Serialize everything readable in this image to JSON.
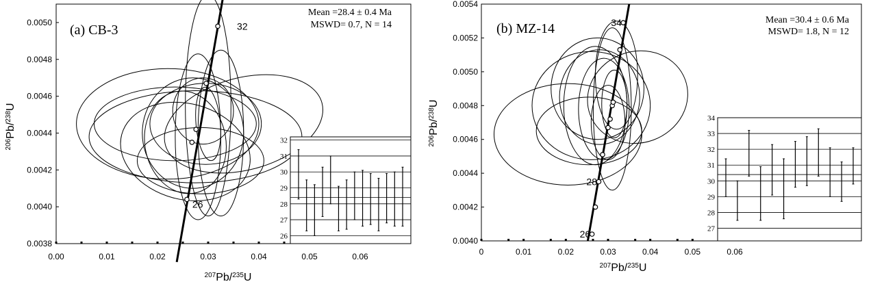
{
  "chart_data": [
    {
      "type": "scatter",
      "panel_label": "(a) CB-3",
      "stats_line1": "Mean =28.4 ± 0.4 Ma",
      "stats_line2": "MSWD= 0.7, N = 14",
      "xlabel_parts": {
        "sup1": "207",
        "base1": "Pb/",
        "sup2": "235",
        "base2": "U"
      },
      "ylabel_parts": {
        "sup1": "206",
        "base1": "Pb/",
        "sup2": "238",
        "base2": "U"
      },
      "xlim": [
        0.0,
        0.07
      ],
      "ylim": [
        0.0038,
        0.0051
      ],
      "x_tick_labels": [
        "0.00",
        "0.01",
        "0.02",
        "0.03",
        "0.04",
        "0.05",
        "0.06"
      ],
      "x_tick_values": [
        0.0,
        0.01,
        0.02,
        0.03,
        0.04,
        0.05,
        0.06
      ],
      "y_tick_labels": [
        "0.0038",
        "0.0040",
        "0.0042",
        "0.0044",
        "0.0046",
        "0.0048",
        "0.0050"
      ],
      "y_tick_values": [
        0.0038,
        0.004,
        0.0042,
        0.0044,
        0.0046,
        0.0048,
        0.005
      ],
      "concordia": [
        [
          0.0238,
          0.0037
        ],
        [
          0.0346,
          0.0054
        ]
      ],
      "concordia_points": [
        {
          "age": "26",
          "x": 0.0258,
          "y": 0.00404
        },
        {
          "age": "",
          "x": 0.0268,
          "y": 0.00435
        },
        {
          "age": "",
          "x": 0.0276,
          "y": 0.00442
        },
        {
          "age": "",
          "x": 0.0296,
          "y": 0.00467
        },
        {
          "age": "32",
          "x": 0.0319,
          "y": 0.00498
        }
      ],
      "ellipses": [
        {
          "cx": 0.0275,
          "cy": 0.00438,
          "rx": 0.021,
          "ry": 0.00025,
          "angle": 0
        },
        {
          "cx": 0.022,
          "cy": 0.00445,
          "rx": 0.018,
          "ry": 0.0003,
          "angle": 0
        },
        {
          "cx": 0.0255,
          "cy": 0.0043,
          "rx": 0.013,
          "ry": 0.00026,
          "angle": -15
        },
        {
          "cx": 0.0235,
          "cy": 0.00445,
          "rx": 0.016,
          "ry": 0.0002,
          "angle": 0
        },
        {
          "cx": 0.037,
          "cy": 0.00445,
          "rx": 0.016,
          "ry": 0.00025,
          "angle": 15
        },
        {
          "cx": 0.027,
          "cy": 0.0044,
          "rx": 0.01,
          "ry": 0.0003,
          "angle": 0
        },
        {
          "cx": 0.0295,
          "cy": 0.00445,
          "rx": 0.011,
          "ry": 0.00022,
          "angle": 0
        },
        {
          "cx": 0.03,
          "cy": 0.00455,
          "rx": 0.0045,
          "ry": 0.0006,
          "angle": 0
        },
        {
          "cx": 0.028,
          "cy": 0.00438,
          "rx": 0.0045,
          "ry": 0.00045,
          "angle": 0
        },
        {
          "cx": 0.0325,
          "cy": 0.0044,
          "rx": 0.0045,
          "ry": 0.00045,
          "angle": 0
        },
        {
          "cx": 0.0255,
          "cy": 0.00435,
          "rx": 0.008,
          "ry": 0.00028,
          "angle": 10
        },
        {
          "cx": 0.0285,
          "cy": 0.00425,
          "rx": 0.0125,
          "ry": 0.00018,
          "angle": 0
        },
        {
          "cx": 0.029,
          "cy": 0.00452,
          "rx": 0.006,
          "ry": 0.00018,
          "angle": 0
        },
        {
          "cx": 0.03,
          "cy": 0.00445,
          "rx": 0.0024,
          "ry": 0.0002,
          "angle": 5
        }
      ],
      "inset": {
        "ylim": [
          25.5,
          32.2
        ],
        "y_tick_labels": [
          "26",
          "27",
          "28",
          "29",
          "30",
          "31",
          "32"
        ],
        "y_tick_values": [
          26,
          27,
          28,
          29,
          30,
          31,
          32
        ],
        "mean": 28.4,
        "bars": [
          {
            "low": 28.3,
            "high": 31.4
          },
          {
            "low": 26.3,
            "high": 29.5
          },
          {
            "low": 26.0,
            "high": 29.2
          },
          {
            "low": 27.2,
            "high": 30.3
          },
          {
            "low": 28.0,
            "high": 31.0
          },
          {
            "low": 26.3,
            "high": 29.1
          },
          {
            "low": 26.4,
            "high": 29.5
          },
          {
            "low": 27.0,
            "high": 30.0
          },
          {
            "low": 26.6,
            "high": 30.1
          },
          {
            "low": 26.7,
            "high": 29.9
          },
          {
            "low": 26.3,
            "high": 29.6
          },
          {
            "low": 26.8,
            "high": 29.9
          },
          {
            "low": 26.6,
            "high": 30.0
          },
          {
            "low": 26.6,
            "high": 30.3
          }
        ]
      }
    },
    {
      "type": "scatter",
      "panel_label": "(b) MZ-14",
      "stats_line1": "Mean =30.4 ± 0.6 Ma",
      "stats_line2": "MSWD= 1.8, N = 12",
      "xlabel_parts": {
        "sup1": "207",
        "base1": "Pb/",
        "sup2": "235",
        "base2": "U"
      },
      "ylabel_parts": {
        "sup1": "206",
        "base1": "Pb/",
        "sup2": "238",
        "base2": "U"
      },
      "xlim": [
        0.0,
        0.09
      ],
      "ylim": [
        0.004,
        0.0054
      ],
      "x_tick_labels": [
        "0",
        "0.01",
        "0.02",
        "0.03",
        "0.04",
        "0.05",
        "0.06"
      ],
      "x_tick_values": [
        0.0,
        0.01,
        0.02,
        0.03,
        0.04,
        0.05,
        0.06
      ],
      "y_tick_labels": [
        "0.0040",
        "0.0042",
        "0.0044",
        "0.0046",
        "0.0048",
        "0.0050",
        "0.0052",
        "0.0054"
      ],
      "y_tick_values": [
        0.004,
        0.0042,
        0.0044,
        0.0046,
        0.0048,
        0.005,
        0.0052,
        0.0054
      ],
      "concordia": [
        [
          0.0252,
          0.004
        ],
        [
          0.035,
          0.0054
        ]
      ],
      "concordia_points": [
        {
          "age": "26",
          "x": 0.0262,
          "y": 0.00404
        },
        {
          "age": "",
          "x": 0.027,
          "y": 0.0042
        },
        {
          "age": "28",
          "x": 0.0278,
          "y": 0.00435
        },
        {
          "age": "",
          "x": 0.0287,
          "y": 0.00451
        },
        {
          "age": "",
          "x": 0.03,
          "y": 0.00467
        },
        {
          "age": "",
          "x": 0.0305,
          "y": 0.00472
        },
        {
          "age": "",
          "x": 0.031,
          "y": 0.0048
        },
        {
          "age": "",
          "x": 0.0312,
          "y": 0.00482
        },
        {
          "age": "",
          "x": 0.0328,
          "y": 0.00513
        },
        {
          "age": "34",
          "x": 0.0336,
          "y": 0.00529
        }
      ],
      "ellipses": [
        {
          "cx": 0.0205,
          "cy": 0.00463,
          "rx": 0.0175,
          "ry": 0.0003,
          "angle": 0
        },
        {
          "cx": 0.0255,
          "cy": 0.00465,
          "rx": 0.0125,
          "ry": 0.0002,
          "angle": 0
        },
        {
          "cx": 0.037,
          "cy": 0.00485,
          "rx": 0.012,
          "ry": 0.00027,
          "angle": 20
        },
        {
          "cx": 0.026,
          "cy": 0.0048,
          "rx": 0.014,
          "ry": 0.00032,
          "angle": 0
        },
        {
          "cx": 0.0275,
          "cy": 0.0049,
          "rx": 0.011,
          "ry": 0.0003,
          "angle": 0
        },
        {
          "cx": 0.028,
          "cy": 0.00485,
          "rx": 0.0095,
          "ry": 0.00028,
          "angle": 0
        },
        {
          "cx": 0.027,
          "cy": 0.0048,
          "rx": 0.0075,
          "ry": 0.00035,
          "angle": 0
        },
        {
          "cx": 0.029,
          "cy": 0.00478,
          "rx": 0.006,
          "ry": 0.0003,
          "angle": 0
        },
        {
          "cx": 0.031,
          "cy": 0.00478,
          "rx": 0.0045,
          "ry": 0.00048,
          "angle": 0
        },
        {
          "cx": 0.032,
          "cy": 0.00498,
          "rx": 0.005,
          "ry": 0.00032,
          "angle": 0
        },
        {
          "cx": 0.03,
          "cy": 0.0047,
          "rx": 0.004,
          "ry": 0.00022,
          "angle": 0
        },
        {
          "cx": 0.0315,
          "cy": 0.00481,
          "rx": 0.003,
          "ry": 0.0002,
          "angle": 0
        }
      ],
      "inset": {
        "ylim": [
          26.2,
          34.0
        ],
        "y_tick_labels": [
          "27",
          "28",
          "29",
          "30",
          "31",
          "32",
          "33",
          "34"
        ],
        "y_tick_values": [
          27,
          28,
          29,
          30,
          31,
          32,
          33,
          34
        ],
        "mean": 30.4,
        "bars": [
          {
            "low": 29.0,
            "high": 31.4
          },
          {
            "low": 27.5,
            "high": 30.0
          },
          {
            "low": 30.3,
            "high": 33.2
          },
          {
            "low": 27.5,
            "high": 30.9
          },
          {
            "low": 29.1,
            "high": 32.3
          },
          {
            "low": 27.6,
            "high": 31.4
          },
          {
            "low": 29.6,
            "high": 32.5
          },
          {
            "low": 29.7,
            "high": 32.8
          },
          {
            "low": 30.3,
            "high": 33.3
          },
          {
            "low": 29.0,
            "high": 32.1
          },
          {
            "low": 28.7,
            "high": 31.2
          },
          {
            "low": 29.8,
            "high": 32.1
          }
        ]
      }
    }
  ]
}
